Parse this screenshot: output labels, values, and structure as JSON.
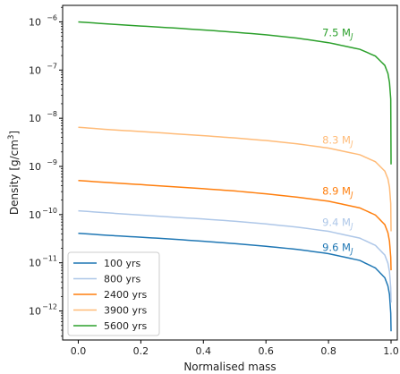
{
  "chart_data": {
    "type": "line",
    "xlabel": "Normalised mass",
    "ylabel": "Density [g/cm",
    "ylabel_sup": "3",
    "ylabel_tail": "]",
    "xscale": "linear",
    "yscale": "log",
    "xlim": [
      -0.05,
      1.02
    ],
    "ylim": [
      2.5e-13,
      2.2e-06
    ],
    "grid": false,
    "legend_position": "lower-left",
    "xticks": [
      0.0,
      0.2,
      0.4,
      0.6,
      0.8,
      1.0
    ],
    "xtick_labels": [
      "0.0",
      "0.2",
      "0.4",
      "0.6",
      "0.8",
      "1.0"
    ],
    "yticks": [
      -12,
      -11,
      -10,
      -9,
      -8,
      -7,
      -6
    ],
    "ytick_base": "10",
    "ytick_exponents": [
      "−12",
      "−11",
      "−10",
      "−9",
      "−8",
      "−7",
      "−6"
    ],
    "series": [
      {
        "name": "100 yrs",
        "color": "#1f77b4",
        "x": [
          0.0,
          0.1,
          0.2,
          0.3,
          0.4,
          0.5,
          0.6,
          0.7,
          0.8,
          0.9,
          0.95,
          0.98,
          0.99,
          0.995,
          0.999,
          1.0
        ],
        "y": [
          4.1e-11,
          3.7e-11,
          3.4e-11,
          3.1e-11,
          2.8e-11,
          2.5e-11,
          2.2e-11,
          1.9e-11,
          1.55e-11,
          1.12e-11,
          7.8e-12,
          4.9e-12,
          3.3e-12,
          2.2e-12,
          9e-13,
          3.8e-13
        ],
        "annotation": {
          "text": "9.6 M",
          "sub": "J",
          "x": 0.78,
          "y": 1.75e-11
        }
      },
      {
        "name": "800 yrs",
        "color": "#aec7e8",
        "x": [
          0.0,
          0.1,
          0.2,
          0.3,
          0.4,
          0.5,
          0.6,
          0.7,
          0.8,
          0.9,
          0.95,
          0.98,
          0.99,
          0.995,
          0.999,
          1.0
        ],
        "y": [
          1.2e-10,
          1.08e-10,
          9.8e-11,
          8.9e-11,
          8.1e-11,
          7.3e-11,
          6.4e-11,
          5.5e-11,
          4.5e-11,
          3.25e-11,
          2.3e-11,
          1.45e-11,
          9.8e-12,
          6.5e-12,
          3e-12,
          1.5e-12
        ],
        "annotation": {
          "text": "9.4 M",
          "sub": "J",
          "x": 0.78,
          "y": 5.8e-11
        }
      },
      {
        "name": "2400 yrs",
        "color": "#ff7f0e",
        "x": [
          0.0,
          0.1,
          0.2,
          0.3,
          0.4,
          0.5,
          0.6,
          0.7,
          0.8,
          0.9,
          0.95,
          0.98,
          0.99,
          0.995,
          0.999,
          1.0
        ],
        "y": [
          5.1e-10,
          4.6e-10,
          4.2e-10,
          3.8e-10,
          3.45e-10,
          3.1e-10,
          2.7e-10,
          2.3e-10,
          1.9e-10,
          1.38e-10,
          9.8e-11,
          6.2e-11,
          4.2e-11,
          2.8e-11,
          1.3e-11,
          7e-12
        ],
        "annotation": {
          "text": "8.9 M",
          "sub": "J",
          "x": 0.78,
          "y": 2.6e-10
        }
      },
      {
        "name": "3900 yrs",
        "color": "#ffbb78",
        "x": [
          0.0,
          0.1,
          0.2,
          0.3,
          0.4,
          0.5,
          0.6,
          0.7,
          0.8,
          0.9,
          0.95,
          0.98,
          0.99,
          0.995,
          0.999,
          1.0
        ],
        "y": [
          6.5e-09,
          5.8e-09,
          5.3e-09,
          4.8e-09,
          4.35e-09,
          3.9e-09,
          3.45e-09,
          2.95e-09,
          2.4e-09,
          1.75e-09,
          1.25e-09,
          8e-10,
          5.5e-10,
          3.7e-10,
          1.7e-10,
          4.5e-11
        ],
        "annotation": {
          "text": "8.3 M",
          "sub": "J",
          "x": 0.78,
          "y": 3e-09
        }
      },
      {
        "name": "5600 yrs",
        "color": "#2ca02c",
        "x": [
          0.0,
          0.1,
          0.2,
          0.3,
          0.4,
          0.5,
          0.6,
          0.7,
          0.8,
          0.9,
          0.95,
          0.98,
          0.99,
          0.995,
          0.999,
          1.0
        ],
        "y": [
          1e-06,
          9e-07,
          8.2e-07,
          7.5e-07,
          6.8e-07,
          6.1e-07,
          5.4e-07,
          4.6e-07,
          3.7e-07,
          2.7e-07,
          1.95e-07,
          1.25e-07,
          8.5e-08,
          5.5e-08,
          2.5e-08,
          1.1e-09
        ],
        "annotation": {
          "text": "7.5 M",
          "sub": "J",
          "x": 0.78,
          "y": 5e-07
        }
      }
    ]
  }
}
